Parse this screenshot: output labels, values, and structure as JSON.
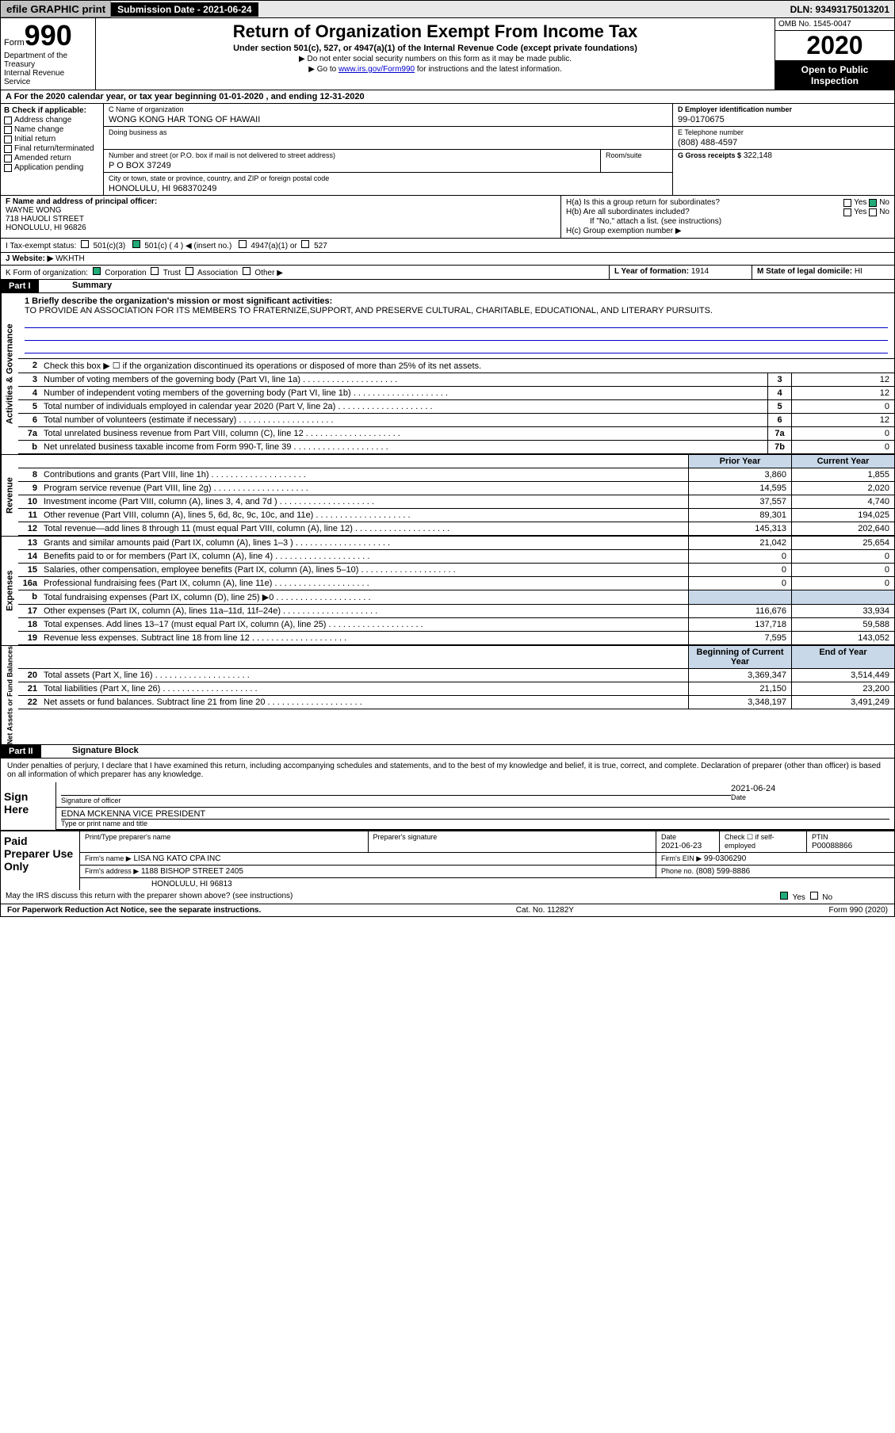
{
  "topbar": {
    "efile": "efile GRAPHIC print",
    "sub_label": "Submission Date - 2021-06-24",
    "dln": "DLN: 93493175013201"
  },
  "header": {
    "form_word": "Form",
    "form_num": "990",
    "title": "Return of Organization Exempt From Income Tax",
    "sub1": "Under section 501(c), 527, or 4947(a)(1) of the Internal Revenue Code (except private foundations)",
    "sub2": "▶ Do not enter social security numbers on this form as it may be made public.",
    "sub3_pre": "▶ Go to ",
    "sub3_link": "www.irs.gov/Form990",
    "sub3_post": " for instructions and the latest information.",
    "dept": "Department of the Treasury\nInternal Revenue Service",
    "omb": "OMB No. 1545-0047",
    "year": "2020",
    "open": "Open to Public Inspection"
  },
  "lineA": "A   For the 2020 calendar year, or tax year beginning 01-01-2020    , and ending 12-31-2020",
  "sectionB": {
    "label": "B Check if applicable:",
    "opts": [
      "Address change",
      "Name change",
      "Initial return",
      "Final return/terminated",
      "Amended return",
      "Application pending"
    ]
  },
  "sectionC": {
    "name_lbl": "C Name of organization",
    "name": "WONG KONG HAR TONG OF HAWAII",
    "dba_lbl": "Doing business as",
    "addr_lbl": "Number and street (or P.O. box if mail is not delivered to street address)",
    "room_lbl": "Room/suite",
    "addr": "P O BOX 37249",
    "city_lbl": "City or town, state or province, country, and ZIP or foreign postal code",
    "city": "HONOLULU, HI  968370249"
  },
  "sectionD": {
    "lbl": "D Employer identification number",
    "val": "99-0170675"
  },
  "sectionE": {
    "lbl": "E Telephone number",
    "val": "(808) 488-4597"
  },
  "sectionG": {
    "lbl": "G Gross receipts $",
    "val": "322,148"
  },
  "sectionF": {
    "lbl": "F  Name and address of principal officer:",
    "name": "WAYNE WONG",
    "addr1": "718 HAUOLI STREET",
    "addr2": "HONOLULU, HI  96826"
  },
  "sectionH": {
    "a": "H(a)  Is this a group return for subordinates?",
    "b": "H(b)  Are all subordinates included?",
    "b_note": "If \"No,\" attach a list. (see instructions)",
    "c": "H(c)  Group exemption number ▶",
    "yes": "Yes",
    "no": "No"
  },
  "sectionI": {
    "lbl": "I    Tax-exempt status:",
    "o1": "501(c)(3)",
    "o2": "501(c) ( 4 ) ◀ (insert no.)",
    "o3": "4947(a)(1) or",
    "o4": "527"
  },
  "sectionJ": {
    "lbl": "J    Website: ▶",
    "val": "WKHTH"
  },
  "sectionK": {
    "lbl": "K Form of organization:",
    "o1": "Corporation",
    "o2": "Trust",
    "o3": "Association",
    "o4": "Other ▶"
  },
  "sectionL": {
    "lbl": "L Year of formation:",
    "val": "1914"
  },
  "sectionM": {
    "lbl": "M State of legal domicile:",
    "val": "HI"
  },
  "part1": {
    "hdr": "Part I",
    "title": "Summary"
  },
  "mission": {
    "lbl": "1   Briefly describe the organization's mission or most significant activities:",
    "text": "TO PROVIDE AN ASSOCIATION FOR ITS MEMBERS TO FRATERNIZE,SUPPORT, AND PRESERVE CULTURAL, CHARITABLE, EDUCATIONAL, AND LITERARY PURSUITS."
  },
  "tabs": {
    "ag": "Activities & Governance",
    "rev": "Revenue",
    "exp": "Expenses",
    "na": "Net Assets or Fund Balances"
  },
  "gov_rows": [
    {
      "n": "2",
      "d": "Check this box ▶ ☐  if the organization discontinued its operations or disposed of more than 25% of its net assets.",
      "bn": "",
      "v": ""
    },
    {
      "n": "3",
      "d": "Number of voting members of the governing body (Part VI, line 1a)",
      "bn": "3",
      "v": "12"
    },
    {
      "n": "4",
      "d": "Number of independent voting members of the governing body (Part VI, line 1b)",
      "bn": "4",
      "v": "12"
    },
    {
      "n": "5",
      "d": "Total number of individuals employed in calendar year 2020 (Part V, line 2a)",
      "bn": "5",
      "v": "0"
    },
    {
      "n": "6",
      "d": "Total number of volunteers (estimate if necessary)",
      "bn": "6",
      "v": "12"
    },
    {
      "n": "7a",
      "d": "Total unrelated business revenue from Part VIII, column (C), line 12",
      "bn": "7a",
      "v": "0"
    },
    {
      "n": "b",
      "d": "Net unrelated business taxable income from Form 990-T, line 39",
      "bn": "7b",
      "v": "0"
    }
  ],
  "col_hdrs": {
    "py": "Prior Year",
    "cy": "Current Year"
  },
  "rev_rows": [
    {
      "n": "8",
      "d": "Contributions and grants (Part VIII, line 1h)",
      "py": "3,860",
      "cy": "1,855"
    },
    {
      "n": "9",
      "d": "Program service revenue (Part VIII, line 2g)",
      "py": "14,595",
      "cy": "2,020"
    },
    {
      "n": "10",
      "d": "Investment income (Part VIII, column (A), lines 3, 4, and 7d )",
      "py": "37,557",
      "cy": "4,740"
    },
    {
      "n": "11",
      "d": "Other revenue (Part VIII, column (A), lines 5, 6d, 8c, 9c, 10c, and 11e)",
      "py": "89,301",
      "cy": "194,025"
    },
    {
      "n": "12",
      "d": "Total revenue—add lines 8 through 11 (must equal Part VIII, column (A), line 12)",
      "py": "145,313",
      "cy": "202,640"
    }
  ],
  "exp_rows": [
    {
      "n": "13",
      "d": "Grants and similar amounts paid (Part IX, column (A), lines 1–3 )",
      "py": "21,042",
      "cy": "25,654"
    },
    {
      "n": "14",
      "d": "Benefits paid to or for members (Part IX, column (A), line 4)",
      "py": "0",
      "cy": "0"
    },
    {
      "n": "15",
      "d": "Salaries, other compensation, employee benefits (Part IX, column (A), lines 5–10)",
      "py": "0",
      "cy": "0"
    },
    {
      "n": "16a",
      "d": "Professional fundraising fees (Part IX, column (A), line 11e)",
      "py": "0",
      "cy": "0"
    },
    {
      "n": "b",
      "d": "Total fundraising expenses (Part IX, column (D), line 25) ▶0",
      "py": "",
      "cy": "",
      "grey": true
    },
    {
      "n": "17",
      "d": "Other expenses (Part IX, column (A), lines 11a–11d, 11f–24e)",
      "py": "116,676",
      "cy": "33,934"
    },
    {
      "n": "18",
      "d": "Total expenses. Add lines 13–17 (must equal Part IX, column (A), line 25)",
      "py": "137,718",
      "cy": "59,588"
    },
    {
      "n": "19",
      "d": "Revenue less expenses. Subtract line 18 from line 12",
      "py": "7,595",
      "cy": "143,052"
    }
  ],
  "na_hdrs": {
    "b": "Beginning of Current Year",
    "e": "End of Year"
  },
  "na_rows": [
    {
      "n": "20",
      "d": "Total assets (Part X, line 16)",
      "py": "3,369,347",
      "cy": "3,514,449"
    },
    {
      "n": "21",
      "d": "Total liabilities (Part X, line 26)",
      "py": "21,150",
      "cy": "23,200"
    },
    {
      "n": "22",
      "d": "Net assets or fund balances. Subtract line 21 from line 20",
      "py": "3,348,197",
      "cy": "3,491,249"
    }
  ],
  "part2": {
    "hdr": "Part II",
    "title": "Signature Block"
  },
  "sig": {
    "decl": "Under penalties of perjury, I declare that I have examined this return, including accompanying schedules and statements, and to the best of my knowledge and belief, it is true, correct, and complete. Declaration of preparer (other than officer) is based on all information of which preparer has any knowledge.",
    "sign_here": "Sign Here",
    "sig_lbl": "Signature of officer",
    "date_lbl": "Date",
    "date": "2021-06-24",
    "name": "EDNA MCKENNA  VICE PRESIDENT",
    "name_lbl": "Type or print name and title"
  },
  "prep": {
    "hdr": "Paid Preparer Use Only",
    "c1": "Print/Type preparer's name",
    "c2": "Preparer's signature",
    "c3": "Date",
    "c3v": "2021-06-23",
    "c4": "Check ☐ if self-employed",
    "c5": "PTIN",
    "c5v": "P00088866",
    "firm_lbl": "Firm's name   ▶",
    "firm": "LISA NG KATO CPA INC",
    "ein_lbl": "Firm's EIN ▶",
    "ein": "99-0306290",
    "addr_lbl": "Firm's address ▶",
    "addr": "1188 BISHOP STREET 2405",
    "addr2": "HONOLULU, HI  96813",
    "phone_lbl": "Phone no.",
    "phone": "(808) 599-8886",
    "discuss": "May the IRS discuss this return with the preparer shown above? (see instructions)",
    "yes": "Yes",
    "no": "No"
  },
  "footer": {
    "l": "For Paperwork Reduction Act Notice, see the separate instructions.",
    "m": "Cat. No. 11282Y",
    "r": "Form 990 (2020)"
  }
}
